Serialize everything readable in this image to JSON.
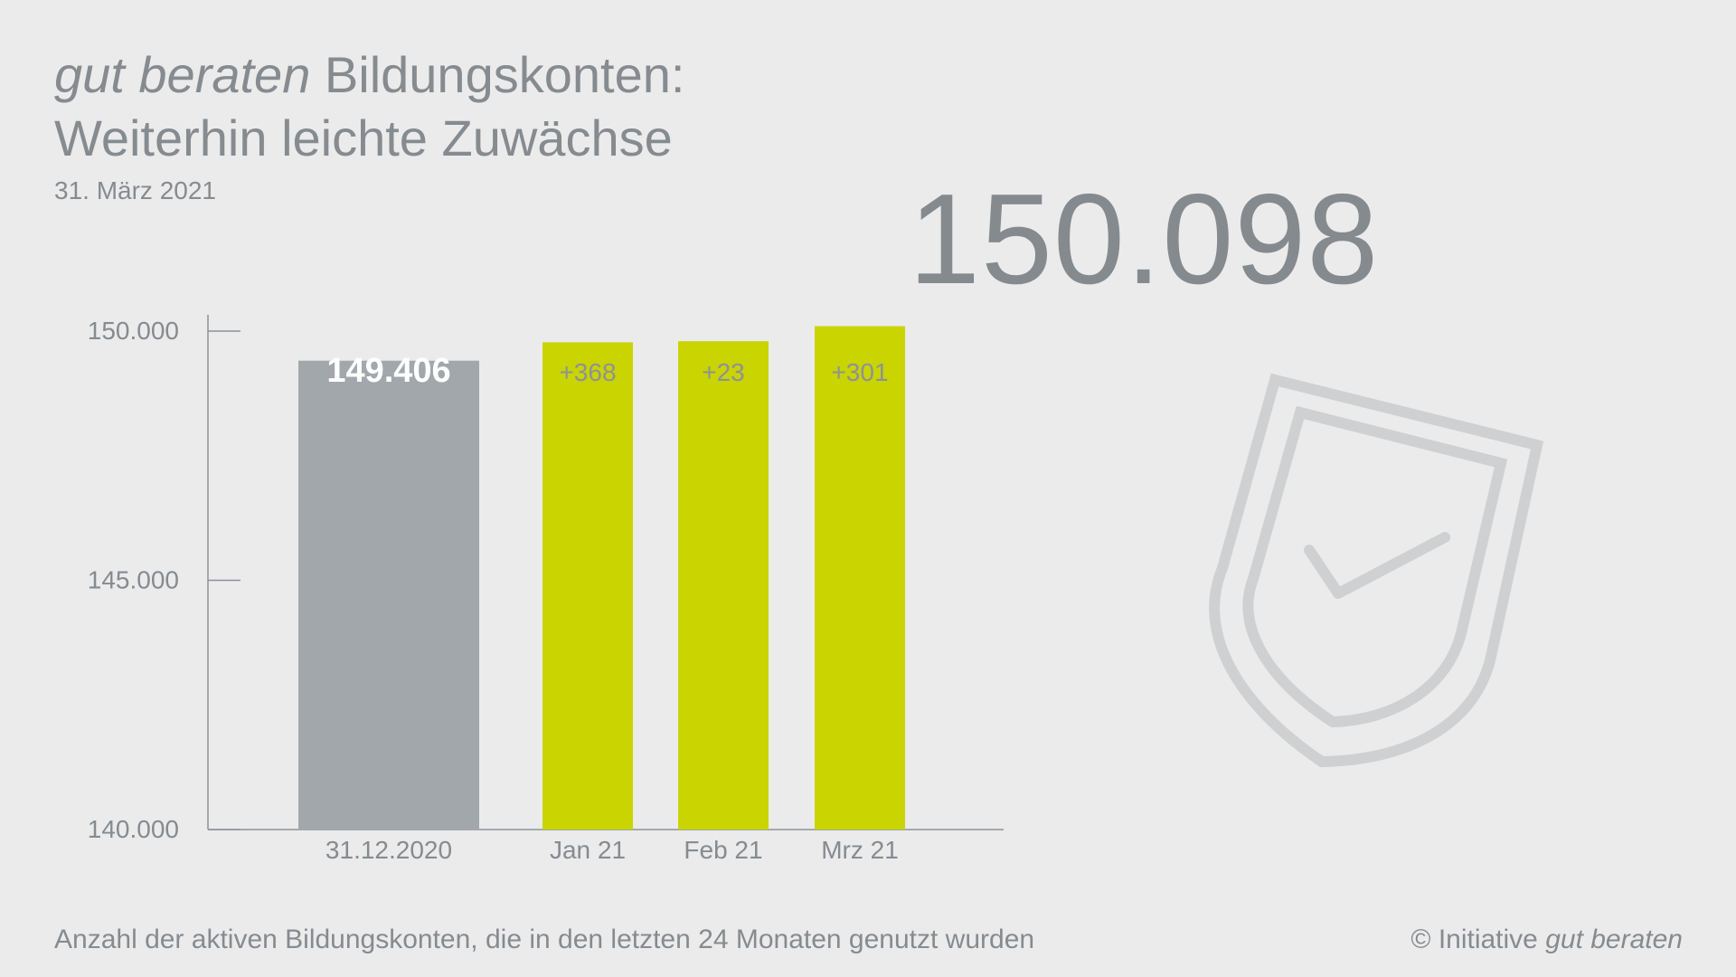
{
  "header": {
    "title_brand": "gut beraten",
    "title_rest": " Bildungskonten:",
    "title_line2": "Weiterhin leichte Zuwächse",
    "date": "31. März 2021"
  },
  "highlight": {
    "total": "150.098"
  },
  "footer": {
    "note": "Anzahl der aktiven Bildungskonten, die in den letzten 24 Monaten genutzt wurden",
    "copyright_prefix": "© Initiative ",
    "copyright_brand": "gut beraten"
  },
  "icons": {
    "shield": "shield-check-icon"
  },
  "chart_data": {
    "type": "bar",
    "categories": [
      "31.12.2020",
      "Jan 21",
      "Feb 21",
      "Mrz 21"
    ],
    "values": [
      149406,
      149774,
      149797,
      150098
    ],
    "data_labels": [
      "149.406",
      "+368",
      "+23",
      "+301"
    ],
    "ylim": [
      140000,
      150000
    ],
    "yticks": [
      140000,
      145000,
      150000
    ],
    "ytick_labels": [
      "140.000",
      "145.000",
      "150.000"
    ],
    "colors": {
      "base": "#a2a7ab",
      "increment": "#c9d400",
      "base_label": "#ffffff",
      "increment_label": "#8e9197"
    }
  }
}
